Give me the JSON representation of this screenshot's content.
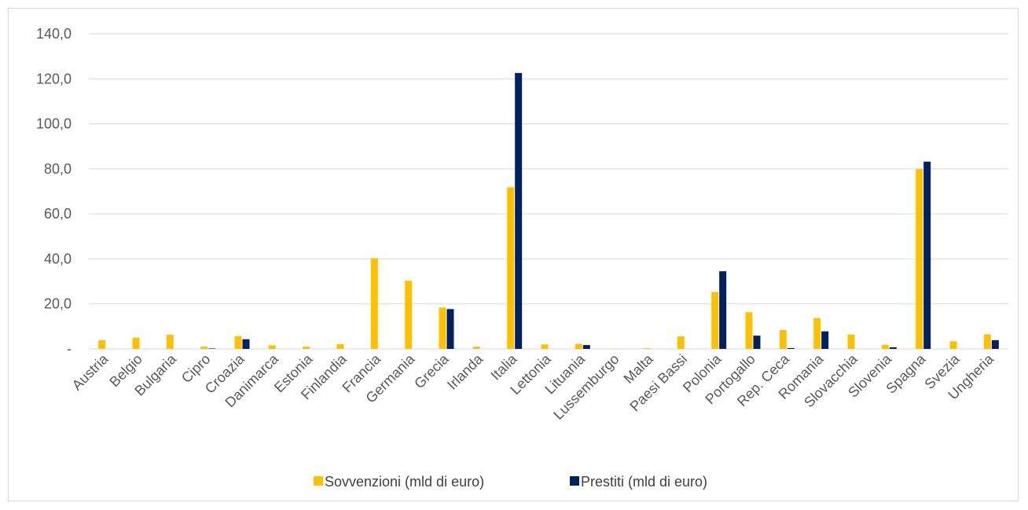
{
  "chart_data": {
    "type": "bar",
    "title": "",
    "xlabel": "",
    "ylabel": "",
    "ylim": [
      0,
      140
    ],
    "yticks": [
      "-",
      "20,0",
      "40,0",
      "60,0",
      "80,0",
      "100,0",
      "120,0",
      "140,0"
    ],
    "grid": true,
    "legend_position": "bottom",
    "categories": [
      "Austria",
      "Belgio",
      "Bulgaria",
      "Cipro",
      "Croazia",
      "Danimarca",
      "Estonia",
      "Finlandia",
      "Francia",
      "Germania",
      "Grecia",
      "Irlanda",
      "Italia",
      "Lettonia",
      "Lituania",
      "Lussemburgo",
      "Malta",
      "Paesi Bassi",
      "Polonia",
      "Portogallo",
      "Rep. Ceca",
      "Romania",
      "Slovacchia",
      "Slovenia",
      "Spagna",
      "Svezia",
      "Ungheria"
    ],
    "series": [
      {
        "name": "Sovvenzioni (mld di euro)",
        "color": "#FFC000",
        "values": [
          3.9,
          5.0,
          6.3,
          1.0,
          5.7,
          1.6,
          1.0,
          2.1,
          40.3,
          30.3,
          18.4,
          1.0,
          71.8,
          2.0,
          2.2,
          0.1,
          0.3,
          5.6,
          25.3,
          16.3,
          8.4,
          13.7,
          6.4,
          1.8,
          79.9,
          3.4,
          6.5
        ]
      },
      {
        "name": "Prestiti (mld di euro)",
        "color": "#002060",
        "values": [
          0,
          0,
          0,
          0.2,
          4.3,
          0,
          0,
          0,
          0,
          0,
          17.7,
          0,
          122.6,
          0,
          1.7,
          0,
          0,
          0,
          34.5,
          5.9,
          0.4,
          7.8,
          0,
          0.7,
          83.2,
          0,
          3.9
        ]
      }
    ]
  }
}
